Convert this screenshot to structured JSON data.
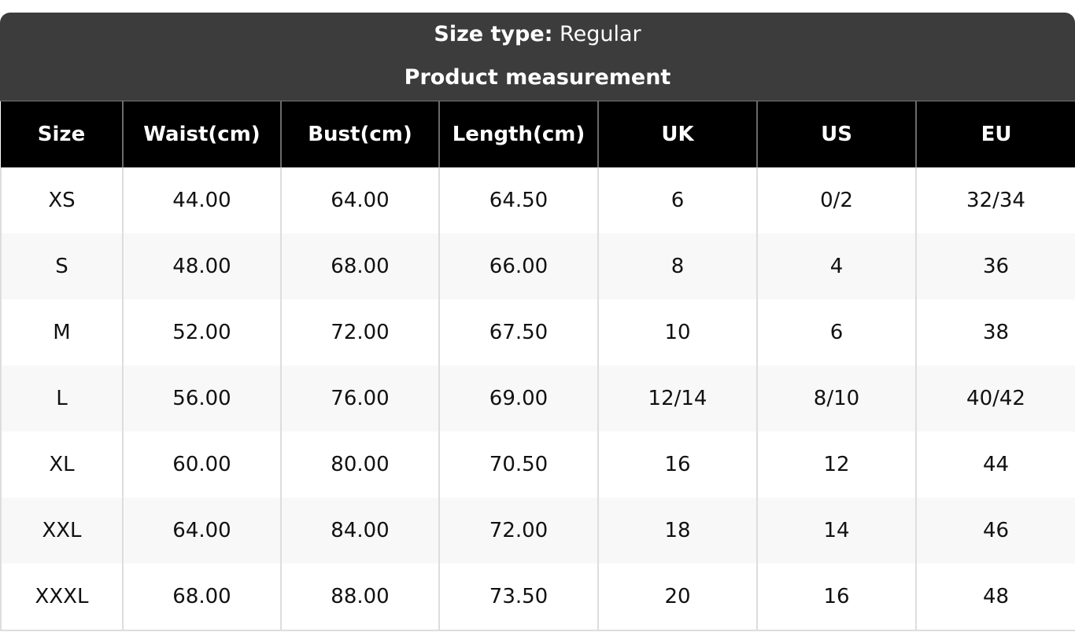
{
  "header": {
    "size_type_label": "Size type:",
    "size_type_value": "Regular",
    "subtitle": "Product measurement"
  },
  "table": {
    "columns": [
      "Size",
      "Waist(cm)",
      "Bust(cm)",
      "Length(cm)",
      "UK",
      "US",
      "EU"
    ],
    "rows": [
      [
        "XS",
        "44.00",
        "64.00",
        "64.50",
        "6",
        "0/2",
        "32/34"
      ],
      [
        "S",
        "48.00",
        "68.00",
        "66.00",
        "8",
        "4",
        "36"
      ],
      [
        "M",
        "52.00",
        "72.00",
        "67.50",
        "10",
        "6",
        "38"
      ],
      [
        "L",
        "56.00",
        "76.00",
        "69.00",
        "12/14",
        "8/10",
        "40/42"
      ],
      [
        "XL",
        "60.00",
        "80.00",
        "70.50",
        "16",
        "12",
        "44"
      ],
      [
        "XXL",
        "64.00",
        "84.00",
        "72.00",
        "18",
        "14",
        "46"
      ],
      [
        "XXXL",
        "68.00",
        "88.00",
        "73.50",
        "20",
        "16",
        "48"
      ]
    ]
  }
}
